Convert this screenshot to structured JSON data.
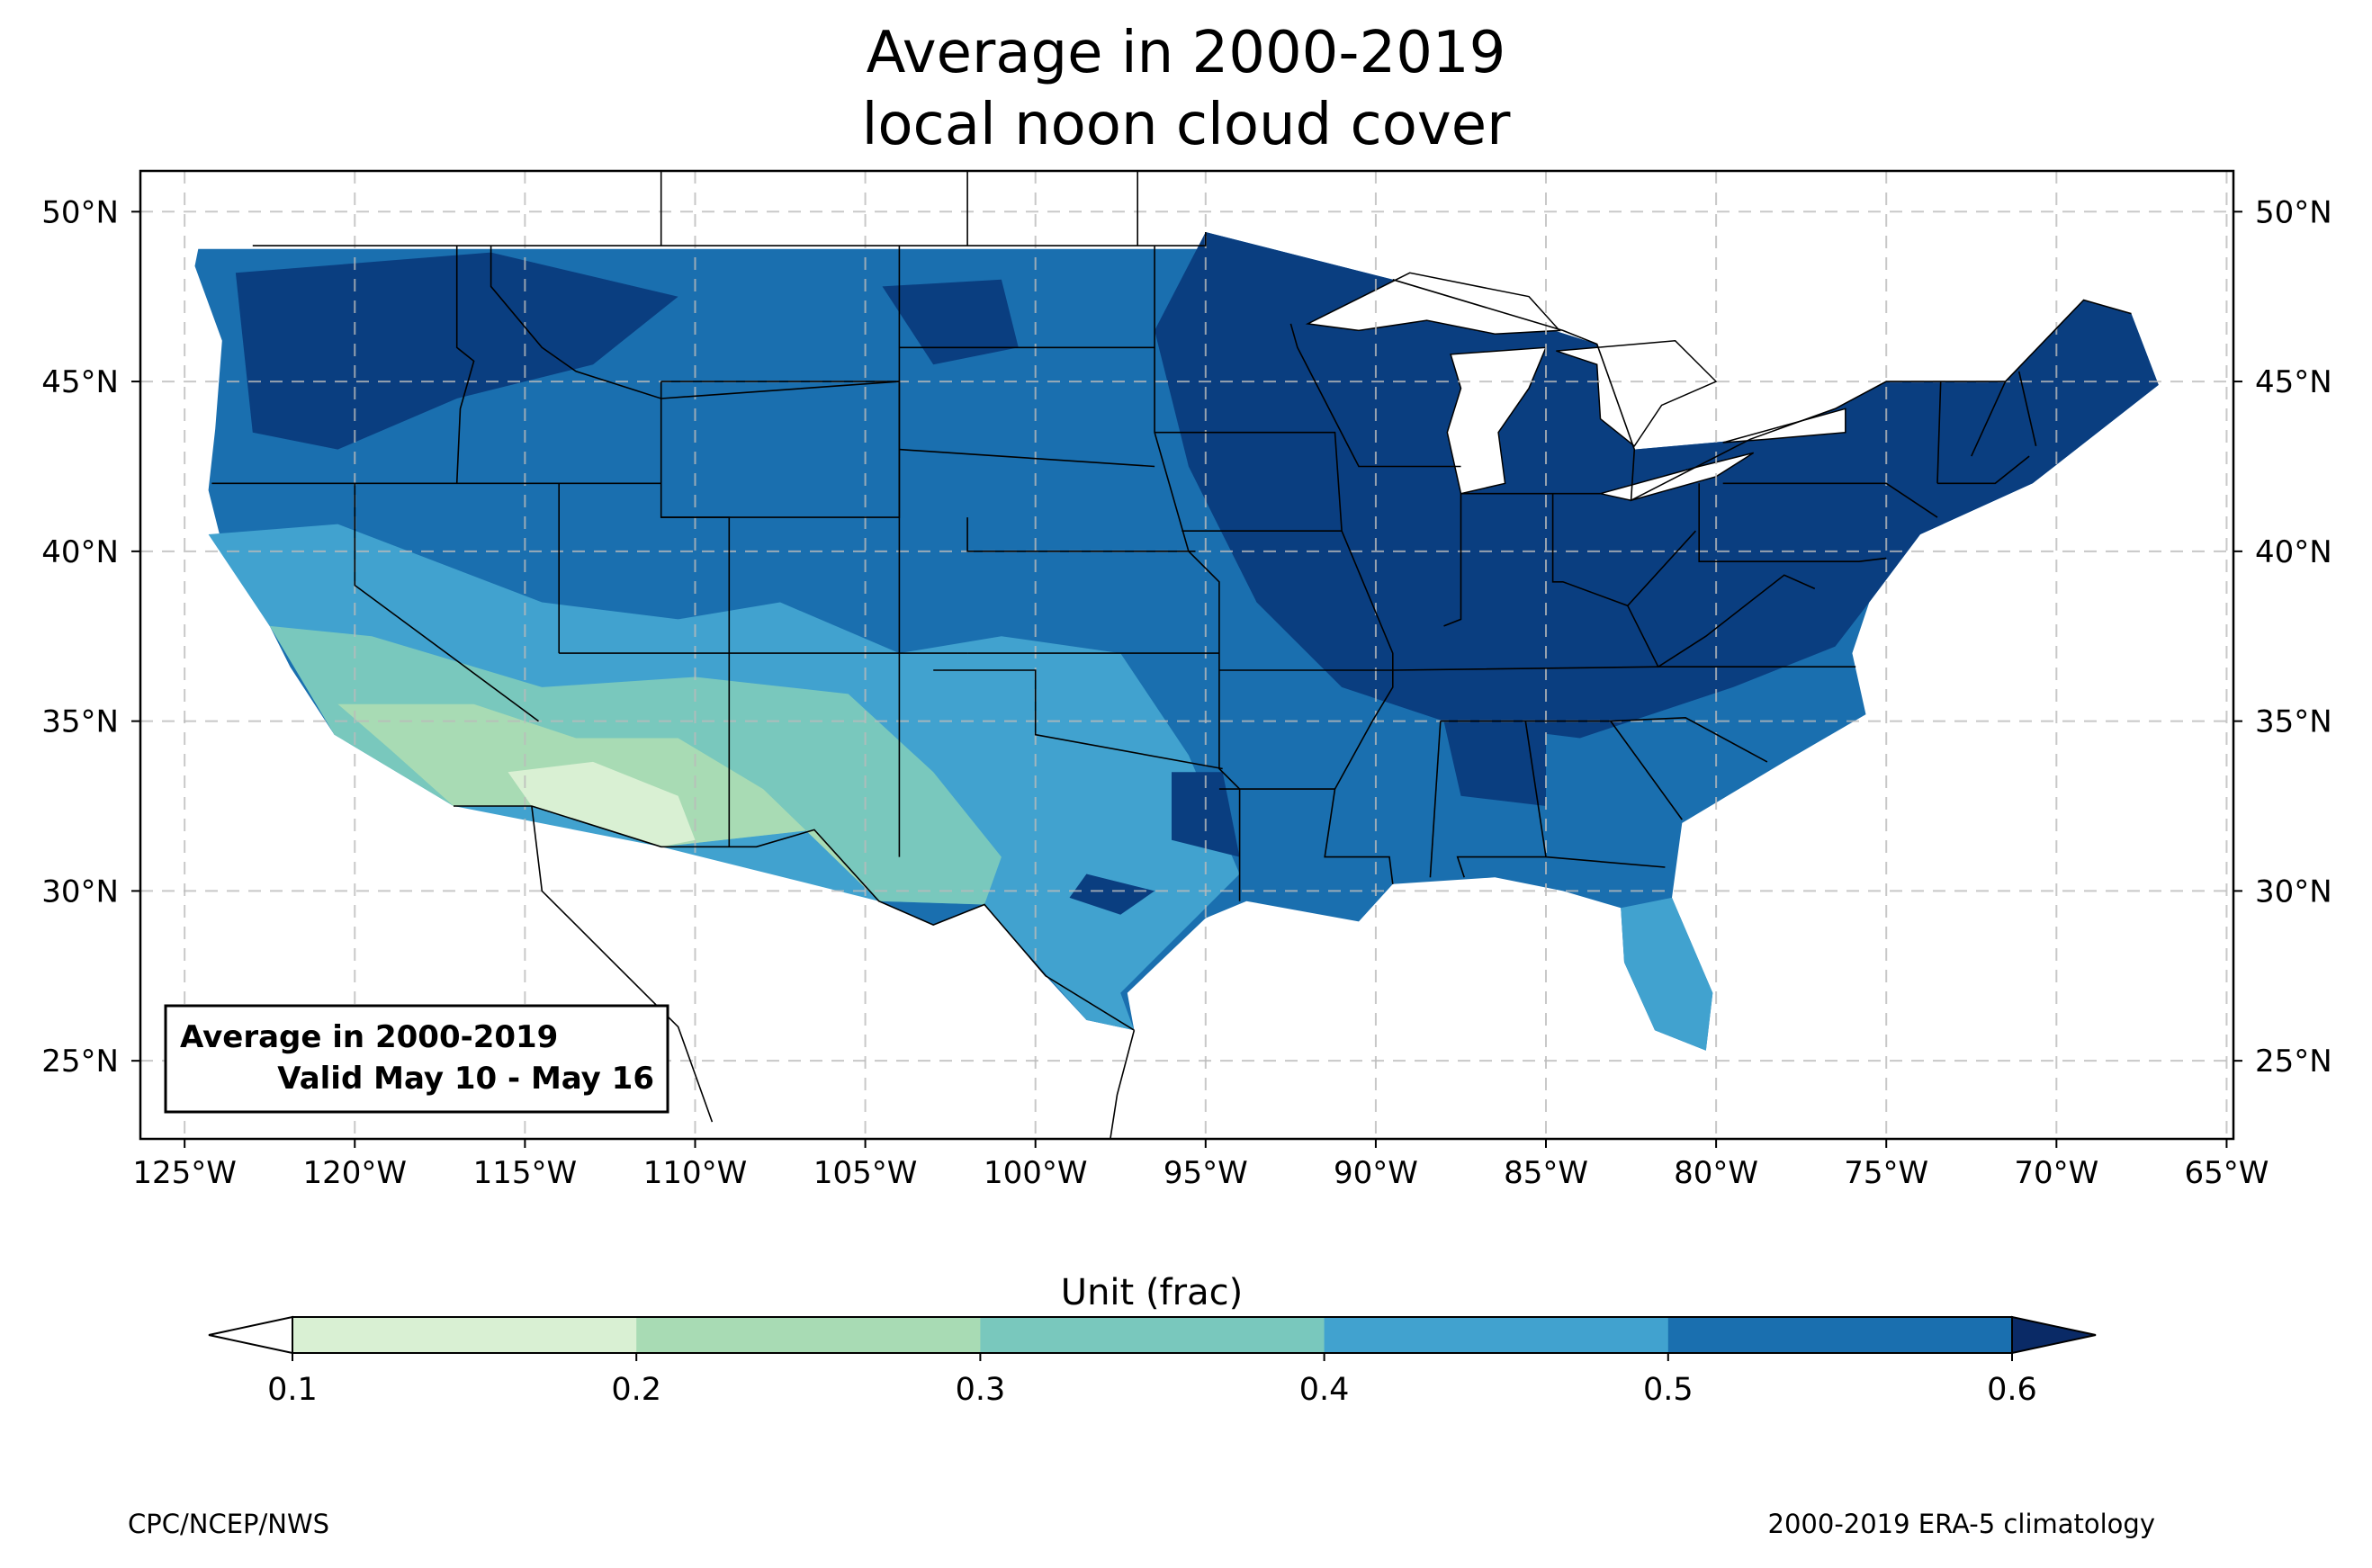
{
  "title": {
    "line1": "Average in 2000-2019",
    "line2": "local noon cloud cover"
  },
  "map": {
    "lon_range": [
      -126.3,
      -64.8
    ],
    "lat_range": [
      22.7,
      51.2
    ],
    "lon_ticks": [
      {
        "value": -125,
        "label": "125°W"
      },
      {
        "value": -120,
        "label": "120°W"
      },
      {
        "value": -115,
        "label": "115°W"
      },
      {
        "value": -110,
        "label": "110°W"
      },
      {
        "value": -105,
        "label": "105°W"
      },
      {
        "value": -100,
        "label": "100°W"
      },
      {
        "value": -95,
        "label": "95°W"
      },
      {
        "value": -90,
        "label": "90°W"
      },
      {
        "value": -85,
        "label": "85°W"
      },
      {
        "value": -80,
        "label": "80°W"
      },
      {
        "value": -75,
        "label": "75°W"
      },
      {
        "value": -70,
        "label": "70°W"
      },
      {
        "value": -65,
        "label": "65°W"
      }
    ],
    "lat_ticks": [
      {
        "value": 50,
        "label": "50°N"
      },
      {
        "value": 45,
        "label": "45°N"
      },
      {
        "value": 40,
        "label": "40°N"
      },
      {
        "value": 35,
        "label": "35°N"
      },
      {
        "value": 30,
        "label": "30°N"
      },
      {
        "value": 25,
        "label": "25°N"
      }
    ],
    "gridlines": true
  },
  "info_box": {
    "line1": "Average in 2000-2019",
    "line2": "Valid May 10 - May 16"
  },
  "colorbar": {
    "label": "Unit (frac)",
    "levels": [
      0.1,
      0.2,
      0.3,
      0.4,
      0.5,
      0.6
    ],
    "tick_labels": [
      "0.1",
      "0.2",
      "0.3",
      "0.4",
      "0.5",
      "0.6"
    ],
    "colors": [
      "#d9f0d3",
      "#a8dbb4",
      "#79c8bd",
      "#41a2cf",
      "#1a6faf",
      "#0a3e80"
    ],
    "under_color": "#ffffff",
    "over_color": "#0a2a66",
    "extend": "both"
  },
  "chart_data": {
    "type": "heatmap",
    "variable": "local noon cloud cover",
    "units": "frac",
    "regions": [
      {
        "color": "#1a6faf",
        "points": [
          [
            -124.6,
            48.9
          ],
          [
            -95,
            48.9
          ],
          [
            -95,
            49.4
          ],
          [
            -89.5,
            48.0
          ],
          [
            -83.5,
            46.1
          ],
          [
            -82.4,
            43.0
          ],
          [
            -79.0,
            43.3
          ],
          [
            -76.5,
            44.2
          ],
          [
            -75.0,
            45.0
          ],
          [
            -71.5,
            45.0
          ],
          [
            -69.2,
            47.4
          ],
          [
            -67.8,
            47.0
          ],
          [
            -67.0,
            44.9
          ],
          [
            -70.7,
            42.0
          ],
          [
            -74.0,
            40.5
          ],
          [
            -75.5,
            38.5
          ],
          [
            -76.0,
            37.0
          ],
          [
            -75.6,
            35.2
          ],
          [
            -78.0,
            33.8
          ],
          [
            -81.0,
            32.0
          ],
          [
            -81.3,
            29.8
          ],
          [
            -80.1,
            27.0
          ],
          [
            -80.3,
            25.3
          ],
          [
            -81.8,
            25.9
          ],
          [
            -82.7,
            27.9
          ],
          [
            -82.8,
            29.5
          ],
          [
            -84.5,
            30.0
          ],
          [
            -86.5,
            30.4
          ],
          [
            -89.5,
            30.2
          ],
          [
            -90.5,
            29.1
          ],
          [
            -93.8,
            29.7
          ],
          [
            -95.0,
            29.2
          ],
          [
            -97.3,
            27.0
          ],
          [
            -97.1,
            25.9
          ],
          [
            -98.5,
            26.2
          ],
          [
            -99.7,
            27.5
          ],
          [
            -101.5,
            29.6
          ],
          [
            -103.0,
            29.0
          ],
          [
            -104.6,
            29.7
          ],
          [
            -106.5,
            31.8
          ],
          [
            -108.2,
            31.3
          ],
          [
            -111.0,
            31.3
          ],
          [
            -114.8,
            32.5
          ],
          [
            -117.1,
            32.5
          ],
          [
            -118.6,
            34.0
          ],
          [
            -120.6,
            34.6
          ],
          [
            -121.9,
            36.6
          ],
          [
            -122.5,
            37.8
          ],
          [
            -123.8,
            39.8
          ],
          [
            -124.3,
            41.8
          ],
          [
            -124.1,
            43.6
          ],
          [
            -123.9,
            46.2
          ],
          [
            -124.7,
            48.4
          ]
        ]
      },
      {
        "color": "#41a2cf",
        "points": [
          [
            -124.3,
            40.5
          ],
          [
            -120.5,
            40.8
          ],
          [
            -114.5,
            38.5
          ],
          [
            -110.5,
            38.0
          ],
          [
            -107.5,
            38.5
          ],
          [
            -104.0,
            37.0
          ],
          [
            -101.0,
            37.5
          ],
          [
            -97.5,
            37.0
          ],
          [
            -95.5,
            34.0
          ],
          [
            -94.0,
            30.5
          ],
          [
            -97.5,
            27.0
          ],
          [
            -97.1,
            25.9
          ],
          [
            -98.5,
            26.2
          ],
          [
            -101.5,
            29.6
          ],
          [
            -104.6,
            29.7
          ],
          [
            -111.0,
            31.3
          ],
          [
            -117.1,
            32.5
          ],
          [
            -120.6,
            34.6
          ],
          [
            -122.5,
            37.8
          ]
        ]
      },
      {
        "color": "#41a2cf",
        "points": [
          [
            -82.8,
            29.5
          ],
          [
            -81.3,
            29.8
          ],
          [
            -80.1,
            27.0
          ],
          [
            -80.3,
            25.3
          ],
          [
            -81.8,
            25.9
          ],
          [
            -82.7,
            27.9
          ]
        ]
      },
      {
        "color": "#79c8bd",
        "points": [
          [
            -122.5,
            37.8
          ],
          [
            -119.5,
            37.5
          ],
          [
            -114.5,
            36.0
          ],
          [
            -110.0,
            36.3
          ],
          [
            -105.5,
            35.8
          ],
          [
            -103.0,
            33.5
          ],
          [
            -101.0,
            31.0
          ],
          [
            -101.5,
            29.6
          ],
          [
            -104.6,
            29.7
          ],
          [
            -106.5,
            31.8
          ],
          [
            -111.0,
            31.3
          ],
          [
            -114.8,
            32.5
          ],
          [
            -117.1,
            32.5
          ],
          [
            -120.6,
            34.6
          ]
        ]
      },
      {
        "color": "#a8dbb4",
        "points": [
          [
            -120.5,
            35.5
          ],
          [
            -116.5,
            35.5
          ],
          [
            -113.5,
            34.5
          ],
          [
            -110.5,
            34.5
          ],
          [
            -108.0,
            33.0
          ],
          [
            -104.6,
            29.7
          ],
          [
            -106.5,
            31.8
          ],
          [
            -111.0,
            31.3
          ],
          [
            -114.8,
            32.5
          ],
          [
            -117.1,
            32.5
          ],
          [
            -119.0,
            34.2
          ]
        ]
      },
      {
        "color": "#d9f0d3",
        "points": [
          [
            -115.5,
            33.5
          ],
          [
            -113.0,
            33.8
          ],
          [
            -110.5,
            32.8
          ],
          [
            -110.0,
            31.5
          ],
          [
            -111.0,
            31.3
          ],
          [
            -114.8,
            32.5
          ]
        ]
      },
      {
        "color": "#0a3e80",
        "points": [
          [
            -96.5,
            46.5
          ],
          [
            -95.5,
            42.5
          ],
          [
            -93.5,
            38.5
          ],
          [
            -91.0,
            36.0
          ],
          [
            -88.0,
            35.0
          ],
          [
            -84.0,
            34.5
          ],
          [
            -79.5,
            36.0
          ],
          [
            -76.5,
            37.2
          ],
          [
            -75.5,
            38.5
          ],
          [
            -74.0,
            40.5
          ],
          [
            -70.7,
            42.0
          ],
          [
            -67.0,
            44.9
          ],
          [
            -67.8,
            47.0
          ],
          [
            -69.2,
            47.4
          ],
          [
            -71.5,
            45.0
          ],
          [
            -75.0,
            45.0
          ],
          [
            -76.5,
            44.2
          ],
          [
            -79.0,
            43.3
          ],
          [
            -82.4,
            43.0
          ],
          [
            -83.5,
            46.1
          ],
          [
            -89.5,
            48.0
          ],
          [
            -95.0,
            49.4
          ]
        ]
      },
      {
        "color": "#0a3e80",
        "points": [
          [
            -123.5,
            48.2
          ],
          [
            -116.0,
            48.8
          ],
          [
            -110.5,
            47.5
          ],
          [
            -113.0,
            45.5
          ],
          [
            -117.0,
            44.5
          ],
          [
            -120.5,
            43.0
          ],
          [
            -123.0,
            43.5
          ]
        ]
      },
      {
        "color": "#0a3e80",
        "points": [
          [
            -104.5,
            47.8
          ],
          [
            -101.0,
            48.0
          ],
          [
            -100.5,
            46.0
          ],
          [
            -103.0,
            45.5
          ]
        ]
      },
      {
        "color": "#0a3e80",
        "points": [
          [
            -96.0,
            33.5
          ],
          [
            -94.5,
            33.5
          ],
          [
            -94.0,
            31.0
          ],
          [
            -96.0,
            31.5
          ]
        ]
      },
      {
        "color": "#0a3e80",
        "points": [
          [
            -98.5,
            30.5
          ],
          [
            -96.5,
            30.0
          ],
          [
            -97.5,
            29.3
          ],
          [
            -99.0,
            29.8
          ]
        ]
      },
      {
        "color": "#0a3e80",
        "points": [
          [
            -88.0,
            35.0
          ],
          [
            -85.0,
            35.0
          ],
          [
            -85.0,
            32.5
          ],
          [
            -87.5,
            32.8
          ]
        ]
      }
    ]
  },
  "credits": {
    "left": "CPC/NCEP/NWS",
    "right": "2000-2019 ERA-5 climatology"
  }
}
